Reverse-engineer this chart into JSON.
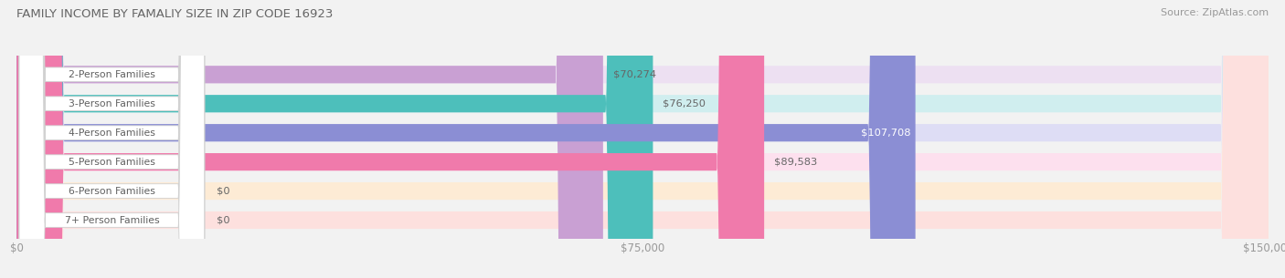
{
  "title": "FAMILY INCOME BY FAMALIY SIZE IN ZIP CODE 16923",
  "source": "Source: ZipAtlas.com",
  "categories": [
    "2-Person Families",
    "3-Person Families",
    "4-Person Families",
    "5-Person Families",
    "6-Person Families",
    "7+ Person Families"
  ],
  "values": [
    70274,
    76250,
    107708,
    89583,
    0,
    0
  ],
  "bar_colors": [
    "#c9a0d3",
    "#4dbfbb",
    "#8b8ed4",
    "#f07aab",
    "#f5c899",
    "#f0a8a4"
  ],
  "bar_bg_colors": [
    "#ede0f2",
    "#d0eeef",
    "#deddf5",
    "#fde0ee",
    "#fdebd5",
    "#fde0de"
  ],
  "xlim_max": 150000,
  "x_ticks": [
    0,
    75000,
    150000
  ],
  "x_tick_labels": [
    "$0",
    "$75,000",
    "$150,000"
  ],
  "background_color": "#f2f2f2"
}
